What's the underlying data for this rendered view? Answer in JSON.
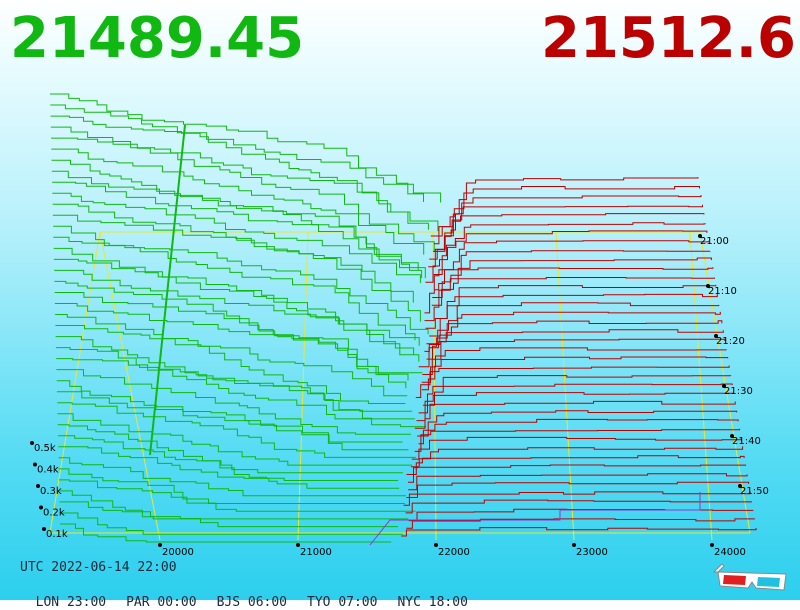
{
  "header": {
    "bid_price": "21489.45",
    "ask_price": "21512.6"
  },
  "colors": {
    "bid": "#11b811",
    "ask": "#bb0000",
    "grid": "#e8e830",
    "baseline": "#9b30c8"
  },
  "chart_data": {
    "type": "area",
    "price_ticks": [
      "20000",
      "21000",
      "22000",
      "23000",
      "24000"
    ],
    "time_ticks": [
      "21:00",
      "21:10",
      "21:20",
      "21:30",
      "21:40",
      "21:50"
    ],
    "volume_ticks": [
      "0.1k",
      "0.2k",
      "0.3k",
      "0.4k",
      "0.5k"
    ]
  },
  "footer": {
    "utc": "UTC 2022-06-14 22:00",
    "zones": [
      {
        "label": "LON 23:00"
      },
      {
        "label": "PAR 00:00"
      },
      {
        "label": "BJS 06:00"
      },
      {
        "label": "TYO 07:00"
      },
      {
        "label": "NYC 18:00"
      }
    ]
  },
  "icons": {
    "glasses": "3d-glasses-icon"
  }
}
